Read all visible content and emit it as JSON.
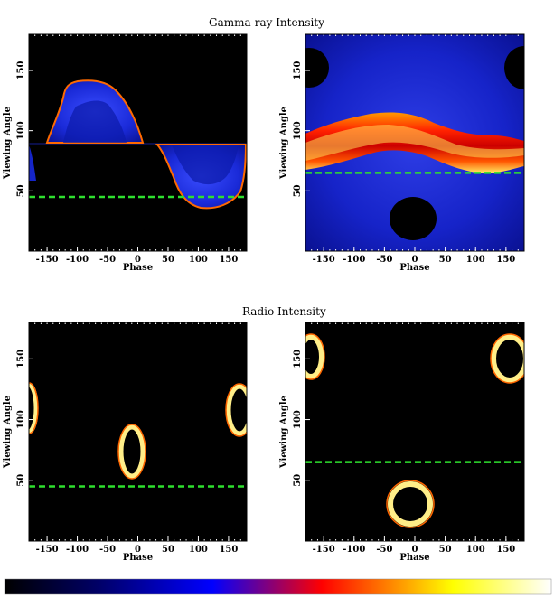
{
  "titles": {
    "top": "Gamma-ray   Intensity",
    "bottom": "Radio   Intensity"
  },
  "colors": {
    "background": "#000000",
    "dashed_line": "#2ee02e",
    "colormap": [
      "#000000",
      "#000066",
      "#0000ff",
      "#ff0000",
      "#ffff00",
      "#ffffff"
    ]
  },
  "chart_data": [
    {
      "id": "gamma-left",
      "type": "heatmap",
      "xlabel": "Phase",
      "ylabel": "Viewing Angle",
      "xlim": [
        -180,
        180
      ],
      "ylim": [
        0,
        180
      ],
      "xticks": [
        -150,
        -100,
        -50,
        0,
        50,
        100,
        150
      ],
      "yticks": [
        50,
        100,
        150
      ],
      "reference_line_y": 45
    },
    {
      "id": "gamma-right",
      "type": "heatmap",
      "xlabel": "Phase",
      "ylabel": "Viewing Angle",
      "xlim": [
        -180,
        180
      ],
      "ylim": [
        0,
        180
      ],
      "xticks": [
        -150,
        -100,
        -50,
        0,
        50,
        100,
        150
      ],
      "yticks": [
        50,
        100,
        150
      ],
      "reference_line_y": 65
    },
    {
      "id": "radio-left",
      "type": "heatmap",
      "xlabel": "Phase",
      "ylabel": "Viewing Angle",
      "xlim": [
        -180,
        180
      ],
      "ylim": [
        0,
        180
      ],
      "xticks": [
        -150,
        -100,
        -50,
        0,
        50,
        100,
        150
      ],
      "yticks": [
        50,
        100,
        150
      ],
      "reference_line_y": 45
    },
    {
      "id": "radio-right",
      "type": "heatmap",
      "xlabel": "Phase",
      "ylabel": "Viewing Angle",
      "xlim": [
        -180,
        180
      ],
      "ylim": [
        0,
        180
      ],
      "xticks": [
        -150,
        -100,
        -50,
        0,
        50,
        100,
        150
      ],
      "yticks": [
        50,
        100,
        150
      ],
      "reference_line_y": 65
    }
  ]
}
